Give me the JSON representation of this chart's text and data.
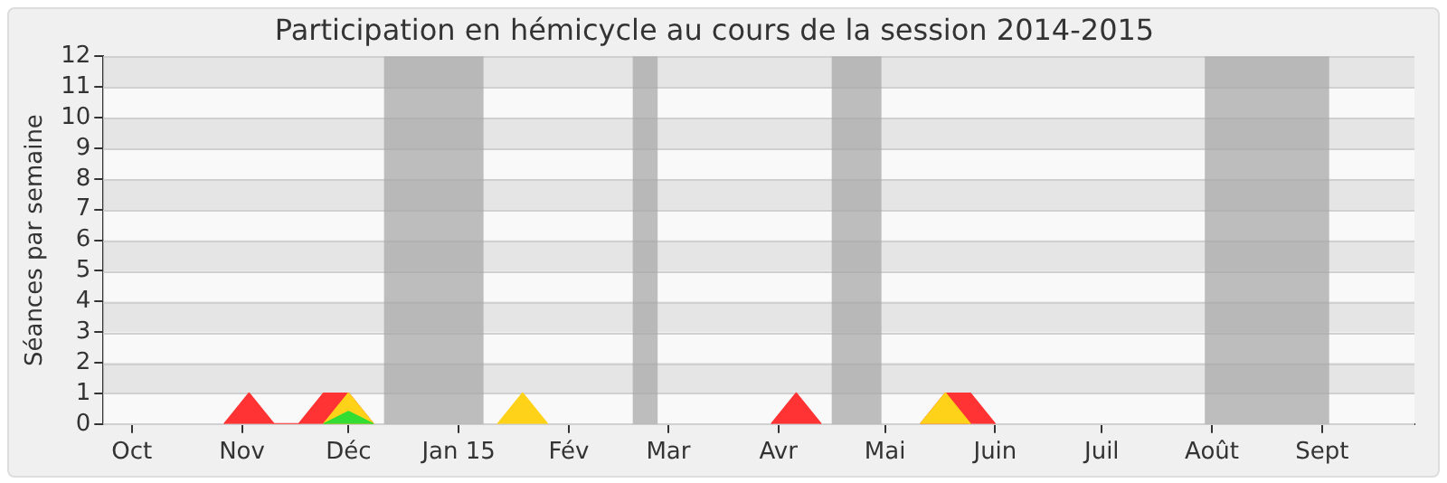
{
  "chart_data": {
    "type": "area",
    "title": "Participation en hémicycle au cours de la session 2014-2015",
    "ylabel": "Séances par semaine",
    "series": [
      {
        "color": "#33dd33",
        "x": [
          "2014-11-24",
          "2014-12-01",
          "2014-12-08"
        ],
        "values": [
          0,
          0.4,
          0
        ]
      },
      {
        "color": "#ffd21a",
        "x": [
          "2014-11-24",
          "2014-12-01",
          "2014-12-08",
          "2015-01-12",
          "2015-01-19",
          "2015-01-26",
          "2015-05-11",
          "2015-05-18",
          "2015-05-25"
        ],
        "values": [
          0,
          1,
          0,
          0,
          1,
          0,
          0,
          1,
          0
        ]
      },
      {
        "color": "#ff3333",
        "x": [
          "2014-10-27",
          "2014-11-03",
          "2014-11-10",
          "2014-11-17",
          "2014-11-24",
          "2014-12-01",
          "2014-12-08",
          "2015-03-30",
          "2015-04-06",
          "2015-04-13",
          "2015-05-11",
          "2015-05-18",
          "2015-05-25",
          "2015-06-01"
        ],
        "values": [
          0,
          1,
          0,
          0,
          1,
          1,
          0,
          0,
          1,
          0,
          0,
          1,
          1,
          0
        ]
      }
    ],
    "xlim": [
      "2014-09-23",
      "2015-09-27"
    ],
    "xticks": [
      {
        "value": "2014-10-01",
        "label": "Oct"
      },
      {
        "value": "2014-11-01",
        "label": "Nov"
      },
      {
        "value": "2014-12-01",
        "label": "Déc"
      },
      {
        "value": "2015-01-01",
        "label": "Jan 15"
      },
      {
        "value": "2015-02-01",
        "label": "Fév"
      },
      {
        "value": "2015-03-01",
        "label": "Mar"
      },
      {
        "value": "2015-04-01",
        "label": "Avr"
      },
      {
        "value": "2015-05-01",
        "label": "Mai"
      },
      {
        "value": "2015-06-01",
        "label": "Juin"
      },
      {
        "value": "2015-07-01",
        "label": "Juil"
      },
      {
        "value": "2015-08-01",
        "label": "Août"
      },
      {
        "value": "2015-09-01",
        "label": "Sept"
      }
    ],
    "ylim": [
      0,
      12
    ],
    "yticks": [
      0,
      1,
      2,
      3,
      4,
      5,
      6,
      7,
      8,
      9,
      10,
      11,
      12
    ],
    "bands": [
      {
        "axis": "x",
        "from": "2014-12-11",
        "to": "2015-01-08",
        "color": "#a8a8a8"
      },
      {
        "axis": "x",
        "from": "2015-02-19",
        "to": "2015-02-26",
        "color": "#a8a8a8"
      },
      {
        "axis": "x",
        "from": "2015-04-16",
        "to": "2015-04-30",
        "color": "#a8a8a8"
      },
      {
        "axis": "x",
        "from": "2015-07-30",
        "to": "2015-09-03",
        "color": "#a8a8a8"
      }
    ],
    "grid": "y",
    "legend": false,
    "marker": "none"
  }
}
